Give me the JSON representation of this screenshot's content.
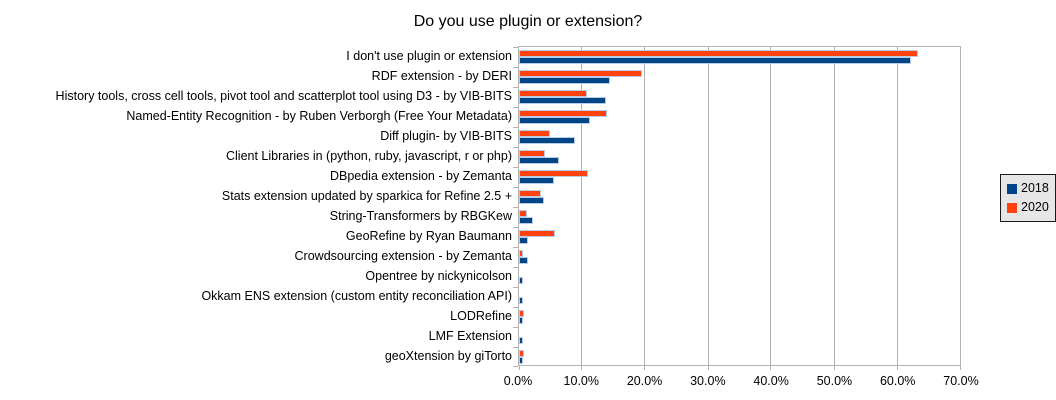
{
  "title": "Do you use plugin or extension?",
  "colors": {
    "series_2018": "#004586",
    "series_2020": "#ff420e",
    "grid": "#b3b3b3",
    "bar_border": "#b9cbe7",
    "legend_bg": "#e6e6e6",
    "legend_border": "#1a1a1a",
    "text": "#000000",
    "background": "#ffffff"
  },
  "legend": {
    "items": [
      {
        "label": "2018",
        "color": "#004586"
      },
      {
        "label": "2020",
        "color": "#ff420e"
      }
    ]
  },
  "chart_data": {
    "type": "bar",
    "orientation": "horizontal",
    "title": "Do you use plugin or extension?",
    "xlabel": "",
    "ylabel": "",
    "xlim": [
      0,
      70
    ],
    "grid": true,
    "legend_position": "right",
    "bar_order_in_group_top_to_bottom": [
      "2020",
      "2018"
    ],
    "x_ticks": [
      "0.0%",
      "10.0%",
      "20.0%",
      "30.0%",
      "40.0%",
      "50.0%",
      "60.0%",
      "70.0%"
    ],
    "categories": [
      "I don't use plugin or extension",
      "RDF extension - by DERI",
      "History tools, cross cell tools, pivot tool and scatterplot tool using D3 - by VIB-BITS",
      "Named-Entity Recognition - by Ruben Verborgh (Free Your Metadata)",
      "Diff plugin- by VIB-BITS",
      "Client Libraries in (python, ruby, javascript, r or php)",
      "DBpedia extension - by Zemanta",
      "Stats extension updated by sparkica for Refine 2.5 +",
      "String-Transformers by RBGKew",
      "GeoRefine by Ryan Baumann",
      "Crowdsourcing extension - by Zemanta",
      "Opentree by nickynicolson",
      "Okkam ENS extension (custom entity reconciliation API)",
      "LODRefine",
      "LMF Extension",
      "geoXtension by giTorto"
    ],
    "series": [
      {
        "name": "2018",
        "color": "#004586",
        "values": [
          62.2,
          14.5,
          13.8,
          11.3,
          8.9,
          6.3,
          5.5,
          3.9,
          2.2,
          1.5,
          1.5,
          0.7,
          0.7,
          0.7,
          0.7,
          0.7
        ]
      },
      {
        "name": "2020",
        "color": "#ff420e",
        "values": [
          63.4,
          19.5,
          10.8,
          13.9,
          4.9,
          4.2,
          11.0,
          3.5,
          1.3,
          5.7,
          0.7,
          0,
          0,
          0.8,
          0,
          0.8
        ]
      }
    ]
  }
}
